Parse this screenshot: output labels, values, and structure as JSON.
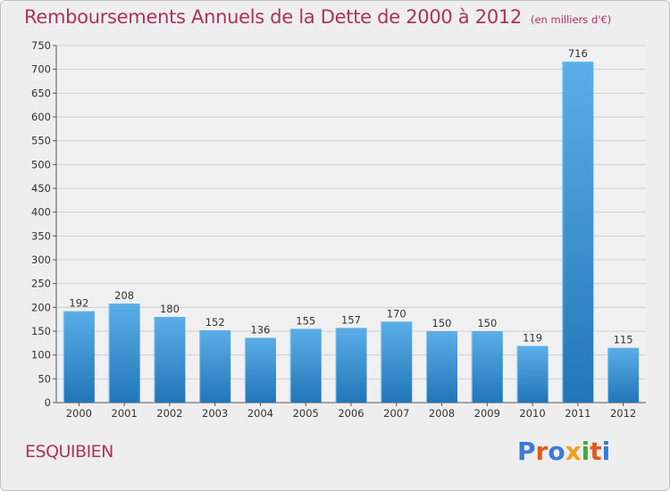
{
  "header": {
    "title": "Remboursements Annuels de la Dette de 2000 à 2012",
    "unit": "(en milliers d'€)"
  },
  "footer": {
    "commune": "ESQUIBIEN",
    "logo_text": "Proxiti",
    "logo_colors": [
      "#3a7bd5",
      "#e25a1c",
      "#3a7bd5",
      "#f0a020",
      "#46a83c",
      "#e25a1c",
      "#3a7bd5"
    ]
  },
  "colors": {
    "bar_light": "#5aaee8",
    "bar_dark": "#2176b8",
    "grid": "#cfcfcf",
    "plot_bg": "#f0f0f0",
    "title": "#b03060"
  },
  "chart_data": {
    "type": "bar",
    "categories": [
      "2000",
      "2001",
      "2002",
      "2003",
      "2004",
      "2005",
      "2006",
      "2007",
      "2008",
      "2009",
      "2010",
      "2011",
      "2012"
    ],
    "values": [
      192,
      208,
      180,
      152,
      136,
      155,
      157,
      170,
      150,
      150,
      119,
      716,
      115
    ],
    "title": "Remboursements Annuels de la Dette de 2000 à 2012",
    "ylim": [
      0,
      750
    ],
    "yticks": [
      0,
      50,
      100,
      150,
      200,
      250,
      300,
      350,
      400,
      450,
      500,
      550,
      600,
      650,
      700,
      750
    ],
    "grid": true,
    "data_labels": true
  }
}
